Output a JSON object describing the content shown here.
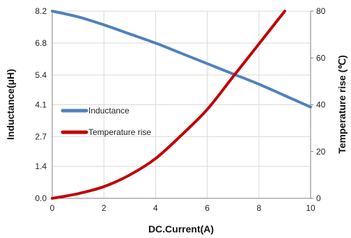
{
  "chart_data": {
    "type": "line",
    "title": "",
    "xlabel": "DC.Current(A)",
    "ylabel": "Inductance(μH)",
    "y2label": "Temperature rise (℃)",
    "xlim": [
      0,
      10
    ],
    "ylim": [
      0,
      8.2
    ],
    "y2lim": [
      0,
      80
    ],
    "x_ticks": [
      "0",
      "2",
      "4",
      "6",
      "8",
      "10"
    ],
    "y_ticks": [
      "0.0",
      "1.4",
      "2.7",
      "4.1",
      "5.4",
      "6.8",
      "8.2"
    ],
    "y2_ticks": [
      "0",
      "20",
      "40",
      "60",
      "80"
    ],
    "grid": true,
    "legend_position": "center-left",
    "series": [
      {
        "name": "Inductance",
        "axis": "left",
        "color": "#4F81BD",
        "x": [
          0,
          1,
          2,
          3,
          4,
          5,
          6,
          7,
          8,
          9,
          10
        ],
        "y": [
          8.2,
          7.95,
          7.6,
          7.2,
          6.8,
          6.35,
          5.9,
          5.45,
          5.0,
          4.5,
          4.0
        ]
      },
      {
        "name": "Temperature rise",
        "axis": "right",
        "color": "#C00000",
        "x": [
          0,
          1,
          2,
          3,
          4,
          5,
          6,
          7,
          8,
          9
        ],
        "y": [
          0,
          2,
          5,
          10,
          17,
          27,
          38,
          52,
          66,
          80
        ]
      }
    ]
  }
}
